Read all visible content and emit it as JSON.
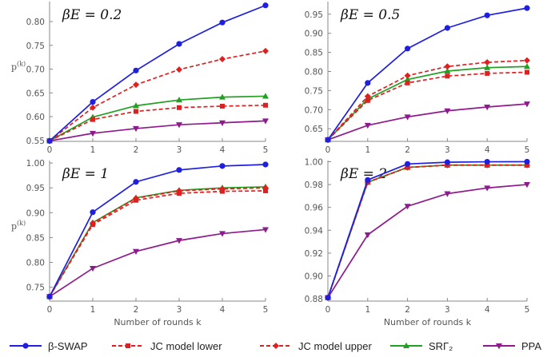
{
  "chart_data": [
    {
      "type": "line",
      "title": "βE = 0.2",
      "ylabel": "p^(k)",
      "xlabel": "",
      "x": [
        0,
        1,
        2,
        3,
        4,
        5
      ],
      "xlim": [
        0,
        5
      ],
      "ylim": [
        0.548,
        0.842
      ],
      "yticks": [
        "0.55",
        "0.60",
        "0.65",
        "0.70",
        "0.75",
        "0.80"
      ],
      "xticks": [
        "0",
        "1",
        "2",
        "3",
        "4",
        "5"
      ],
      "series": [
        {
          "key": "swap",
          "values": [
            0.549,
            0.631,
            0.697,
            0.753,
            0.798,
            0.834
          ]
        },
        {
          "key": "jcl",
          "values": [
            0.549,
            0.594,
            0.611,
            0.619,
            0.622,
            0.624
          ]
        },
        {
          "key": "jcu",
          "values": [
            0.549,
            0.619,
            0.667,
            0.699,
            0.721,
            0.738
          ]
        },
        {
          "key": "srg",
          "values": [
            0.549,
            0.599,
            0.623,
            0.635,
            0.641,
            0.643
          ]
        },
        {
          "key": "ppa",
          "values": [
            0.549,
            0.565,
            0.575,
            0.583,
            0.587,
            0.591
          ]
        }
      ]
    },
    {
      "type": "line",
      "title": "βE = 0.5",
      "ylabel": "",
      "xlabel": "",
      "x": [
        0,
        1,
        2,
        3,
        4,
        5
      ],
      "xlim": [
        0,
        5
      ],
      "ylim": [
        0.617,
        0.983
      ],
      "yticks": [
        "0.65",
        "0.70",
        "0.75",
        "0.80",
        "0.85",
        "0.90",
        "0.95"
      ],
      "xticks": [
        "0",
        "1",
        "2",
        "3",
        "4",
        "5"
      ],
      "series": [
        {
          "key": "swap",
          "values": [
            0.621,
            0.77,
            0.86,
            0.914,
            0.947,
            0.966
          ]
        },
        {
          "key": "jcl",
          "values": [
            0.621,
            0.724,
            0.77,
            0.788,
            0.795,
            0.798
          ]
        },
        {
          "key": "jcu",
          "values": [
            0.621,
            0.735,
            0.789,
            0.813,
            0.824,
            0.829
          ]
        },
        {
          "key": "srg",
          "values": [
            0.621,
            0.728,
            0.779,
            0.801,
            0.81,
            0.813
          ]
        },
        {
          "key": "ppa",
          "values": [
            0.621,
            0.659,
            0.681,
            0.697,
            0.707,
            0.715
          ]
        }
      ]
    },
    {
      "type": "line",
      "title": "βE = 1",
      "ylabel": "p^(k)",
      "xlabel": "Number of rounds k",
      "x": [
        0,
        1,
        2,
        3,
        4,
        5
      ],
      "xlim": [
        0,
        5
      ],
      "ylim": [
        0.722,
        1.005
      ],
      "yticks": [
        "0.75",
        "0.80",
        "0.85",
        "0.90",
        "0.95",
        "1.00"
      ],
      "xticks": [
        "0",
        "1",
        "2",
        "3",
        "4",
        "5"
      ],
      "series": [
        {
          "key": "swap",
          "values": [
            0.731,
            0.901,
            0.962,
            0.986,
            0.994,
            0.997
          ]
        },
        {
          "key": "jcl",
          "values": [
            0.731,
            0.876,
            0.925,
            0.939,
            0.943,
            0.944
          ]
        },
        {
          "key": "jcu",
          "values": [
            0.731,
            0.879,
            0.929,
            0.944,
            0.948,
            0.95
          ]
        },
        {
          "key": "srg",
          "values": [
            0.731,
            0.88,
            0.93,
            0.945,
            0.95,
            0.952
          ]
        },
        {
          "key": "ppa",
          "values": [
            0.731,
            0.788,
            0.822,
            0.844,
            0.858,
            0.866
          ]
        }
      ]
    },
    {
      "type": "line",
      "title": "βE = 2",
      "ylabel": "",
      "xlabel": "Number of rounds k",
      "x": [
        0,
        1,
        2,
        3,
        4,
        5
      ],
      "xlim": [
        0,
        5
      ],
      "ylim": [
        0.878,
        1.001
      ],
      "yticks": [
        "0.88",
        "0.90",
        "0.92",
        "0.94",
        "0.96",
        "0.98",
        "1.00"
      ],
      "xticks": [
        "0",
        "1",
        "2",
        "3",
        "4",
        "5"
      ],
      "series": [
        {
          "key": "swap",
          "values": [
            0.881,
            0.984,
            0.998,
            0.9995,
            0.9999,
            1.0
          ]
        },
        {
          "key": "jcl",
          "values": [
            0.881,
            0.982,
            0.995,
            0.997,
            0.997,
            0.997
          ]
        },
        {
          "key": "jcu",
          "values": [
            0.881,
            0.982,
            0.995,
            0.997,
            0.997,
            0.997
          ]
        },
        {
          "key": "srg",
          "values": [
            0.881,
            0.982,
            0.995,
            0.997,
            0.997,
            0.997
          ]
        },
        {
          "key": "ppa",
          "values": [
            0.881,
            0.936,
            0.961,
            0.972,
            0.977,
            0.98
          ]
        }
      ]
    }
  ],
  "legend": [
    {
      "key": "swap",
      "label": "β-SWAP",
      "color": "#1f1fe0",
      "marker": "circle",
      "dash": "solid"
    },
    {
      "key": "jcl",
      "label": "JC model lower",
      "color": "#e02020",
      "marker": "square",
      "dash": "dashed"
    },
    {
      "key": "jcu",
      "label": "JC model upper",
      "color": "#e02020",
      "marker": "diamond",
      "dash": "dashed"
    },
    {
      "key": "srg",
      "label": "SRΓ₂",
      "color": "#22a022",
      "marker": "triangle-up",
      "dash": "solid"
    },
    {
      "key": "ppa",
      "label": "PPA",
      "color": "#8e1a8e",
      "marker": "triangle-down",
      "dash": "solid"
    }
  ]
}
